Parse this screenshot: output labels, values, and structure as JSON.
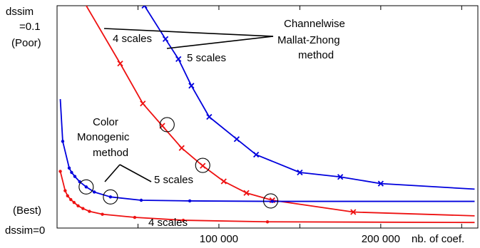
{
  "chart_data": {
    "type": "line",
    "title": "",
    "xlabel": "nb. of coef.",
    "ylabel": "dssim",
    "xlim": [
      0,
      260000
    ],
    "ylim": [
      0,
      0.1
    ],
    "grid": false,
    "x_ticks": [
      {
        "value": 50000,
        "label": ""
      },
      {
        "value": 100000,
        "label": "100 000"
      },
      {
        "value": 150000,
        "label": ""
      },
      {
        "value": 200000,
        "label": "200 000"
      },
      {
        "value": 250000,
        "label": ""
      }
    ],
    "y_axis_labels": {
      "top_line1": "dssim",
      "top_line2": "=0.1",
      "top_line3": "(Poor)",
      "bottom_line1": "(Best)",
      "bottom_line2": "dssim=0"
    },
    "colors": {
      "blue": "#0000dd",
      "red": "#ee1111"
    },
    "series": [
      {
        "group": "Channelwise Mallat-Zhong method",
        "scales": "5 scales",
        "color": "#0000dd",
        "marker": "x",
        "x": [
          50000,
          54000,
          67000,
          75000,
          83000,
          94000,
          111000,
          123000,
          150000,
          175000,
          200000,
          258000
        ],
        "y": [
          0.108,
          0.1,
          0.085,
          0.076,
          0.064,
          0.05,
          0.04,
          0.033,
          0.025,
          0.023,
          0.02,
          0.0175
        ],
        "markers": [
          true,
          true,
          true,
          true,
          true,
          true,
          true,
          true,
          true,
          true,
          true,
          false
        ]
      },
      {
        "group": "Channelwise Mallat-Zhong method",
        "scales": "4 scales",
        "color": "#ee1111",
        "marker": "x",
        "x": [
          14000,
          39000,
          53000,
          65000,
          77000,
          90000,
          103000,
          117000,
          133000,
          183000,
          258000
        ],
        "y": [
          0.105,
          0.074,
          0.056,
          0.046,
          0.036,
          0.028,
          0.021,
          0.0158,
          0.0125,
          0.0072,
          0.0055
        ],
        "markers": [
          false,
          true,
          true,
          true,
          true,
          true,
          true,
          true,
          true,
          true,
          false
        ]
      },
      {
        "group": "Color Monogenic method",
        "scales": "5 scales",
        "color": "#0000dd",
        "marker": "dot",
        "x": [
          2000,
          3500,
          7500,
          9000,
          11000,
          14000,
          18000,
          23000,
          33000,
          52000,
          82000,
          133000,
          258000
        ],
        "y": [
          0.058,
          0.039,
          0.027,
          0.025,
          0.0232,
          0.0208,
          0.0185,
          0.0162,
          0.014,
          0.0125,
          0.0122,
          0.012,
          0.012
        ],
        "markers": [
          false,
          true,
          true,
          true,
          true,
          true,
          true,
          true,
          true,
          true,
          true,
          true,
          false
        ]
      },
      {
        "group": "Color Monogenic method",
        "scales": "4 scales",
        "color": "#ee1111",
        "marker": "dot",
        "x": [
          2000,
          5000,
          6500,
          8500,
          10500,
          13000,
          16000,
          20000,
          28000,
          48000,
          78000,
          130000,
          258000
        ],
        "y": [
          0.0255,
          0.0168,
          0.0145,
          0.0128,
          0.0115,
          0.01,
          0.0088,
          0.0075,
          0.0062,
          0.0048,
          0.0035,
          0.0028,
          0.0025
        ],
        "markers": [
          true,
          true,
          true,
          true,
          true,
          true,
          true,
          true,
          true,
          true,
          true,
          true,
          false
        ]
      }
    ],
    "circled_points": [
      {
        "x": 68000,
        "y": 0.0465
      },
      {
        "x": 90000,
        "y": 0.0282
      },
      {
        "x": 132000,
        "y": 0.0122
      },
      {
        "x": 18000,
        "y": 0.0185
      },
      {
        "x": 33000,
        "y": 0.014
      }
    ],
    "annotations": {
      "mallat_line1": "Channelwise",
      "mallat_line2": "Mallat-Zhong",
      "mallat_line3": "method",
      "mallat_4_scales": "4 scales",
      "mallat_5_scales": "5 scales",
      "mono_line1": "Color",
      "mono_line2": "Monogenic",
      "mono_line3": "method",
      "mono_5_scales": "5 scales",
      "mono_4_scales": "4 scales"
    }
  }
}
